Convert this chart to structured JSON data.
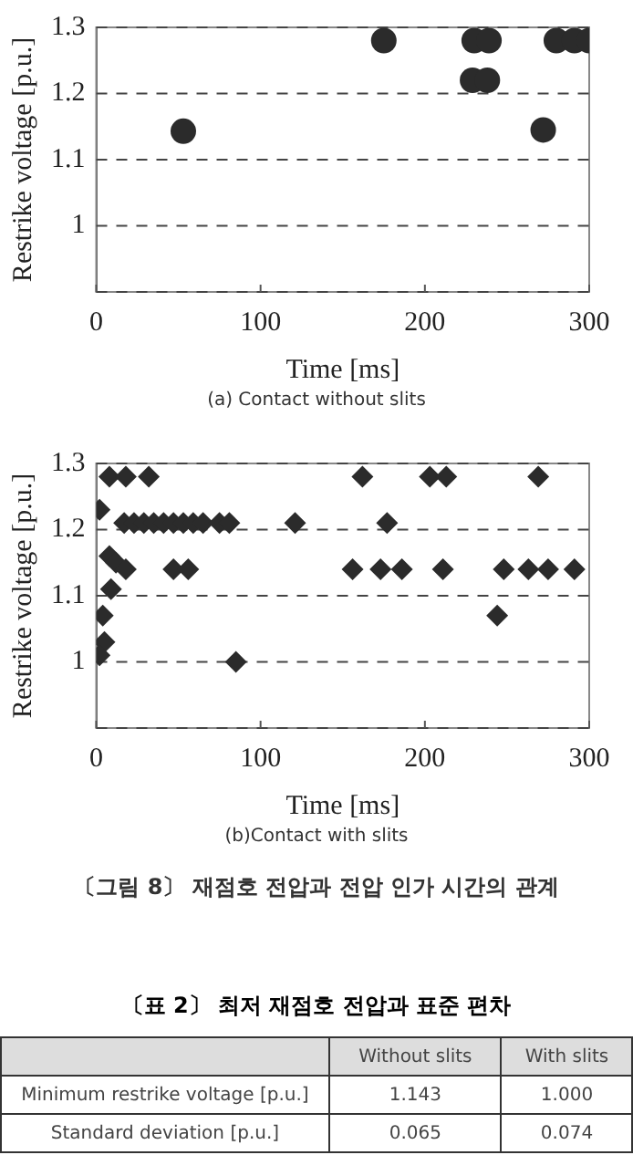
{
  "chart_data": [
    {
      "type": "scatter",
      "xlabel": "Time [ms]",
      "ylabel": "Restrike voltage [p.u.]",
      "xlim": [
        0,
        300
      ],
      "ylim": [
        0.9,
        1.3
      ],
      "xticks": [
        0,
        100,
        200,
        300
      ],
      "yticks": [
        {
          "value": 0.9,
          "label": null
        },
        1,
        1.1,
        1.2,
        1.3
      ],
      "grid": "y",
      "marker": "circle",
      "annotations": [
        "(a) Contact without slits"
      ],
      "series": [
        {
          "color": "#2b2b2b",
          "x": [
            53,
            175,
            230,
            239,
            229,
            238,
            272,
            280,
            291,
            300
          ],
          "values": [
            1.143,
            1.28,
            1.28,
            1.28,
            1.22,
            1.22,
            1.145,
            1.28,
            1.28,
            1.28
          ]
        }
      ]
    },
    {
      "type": "scatter",
      "xlabel": "Time [ms]",
      "ylabel": "Restrike voltage [p.u.]",
      "xlim": [
        0,
        300
      ],
      "ylim": [
        0.9,
        1.3
      ],
      "xticks": [
        0,
        100,
        200,
        300
      ],
      "yticks": [
        {
          "value": 0.9,
          "label": null
        },
        1,
        1.1,
        1.2,
        1.3
      ],
      "grid": "y",
      "marker": "diamond",
      "annotations": [
        "(b)Contact with slits",
        "〔그림 8〕 재점호 전압과 전압 인가 시간의 관계"
      ],
      "series": [
        {
          "color": "#2b2b2b",
          "x": [
            2,
            8,
            18,
            32,
            4,
            5,
            2,
            9,
            8,
            12,
            18,
            17,
            23,
            29,
            35,
            41,
            47,
            53,
            59,
            65,
            75,
            81,
            47,
            56,
            85,
            121,
            162,
            156,
            173,
            186,
            177,
            203,
            213,
            211,
            244,
            248,
            263,
            275,
            291,
            269
          ],
          "values": [
            1.23,
            1.28,
            1.28,
            1.28,
            1.07,
            1.03,
            1.01,
            1.11,
            1.16,
            1.15,
            1.14,
            1.21,
            1.21,
            1.21,
            1.21,
            1.21,
            1.21,
            1.21,
            1.21,
            1.21,
            1.21,
            1.21,
            1.14,
            1.14,
            1.0,
            1.21,
            1.28,
            1.14,
            1.14,
            1.14,
            1.21,
            1.28,
            1.28,
            1.14,
            1.07,
            1.14,
            1.14,
            1.14,
            1.14,
            1.28
          ]
        }
      ]
    },
    {
      "type": "other",
      "title": "〔표 2〕 최저 재점호 전압과 표준 편차",
      "categories": [
        "Without slits",
        "With slits"
      ],
      "y_categories": [
        "Minimum restrike voltage [p.u.]",
        "Standard deviation [p.u.]"
      ],
      "cell_labels": [
        [
          "1.143",
          "1.000"
        ],
        [
          "0.065",
          "0.074"
        ]
      ]
    }
  ]
}
